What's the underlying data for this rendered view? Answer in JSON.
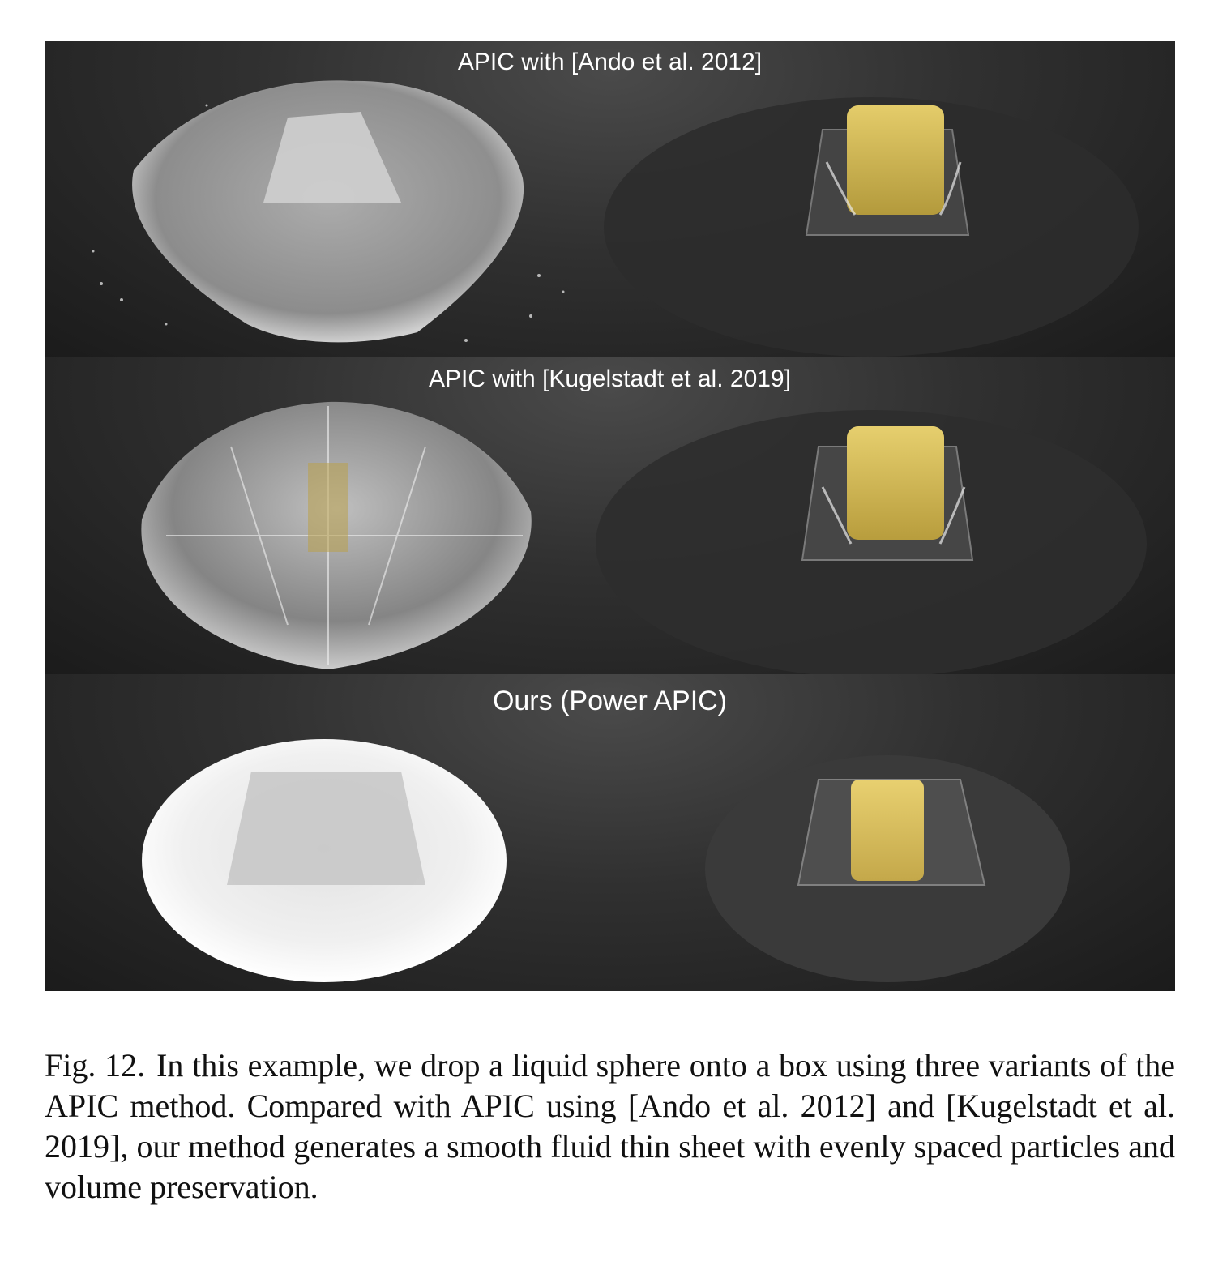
{
  "figure": {
    "panels": [
      {
        "title": "APIC with [Ando et al. 2012]",
        "style": "noisy"
      },
      {
        "title": "APIC with [Kugelstadt et al. 2019]",
        "style": "streaky"
      },
      {
        "title": "Ours (Power APIC)",
        "style": "smooth"
      }
    ],
    "colors": {
      "fluid": "#d9d9d9",
      "box": "#d8bd55",
      "background": "#262626"
    }
  },
  "caption": {
    "label": "Fig. 12.",
    "text": "In this example, we drop a liquid sphere onto a box using three variants of the APIC method. Compared with APIC using [Ando et al. 2012] and [Kugelstadt et al. 2019], our method generates a smooth fluid thin sheet with evenly spaced particles and volume preservation."
  }
}
